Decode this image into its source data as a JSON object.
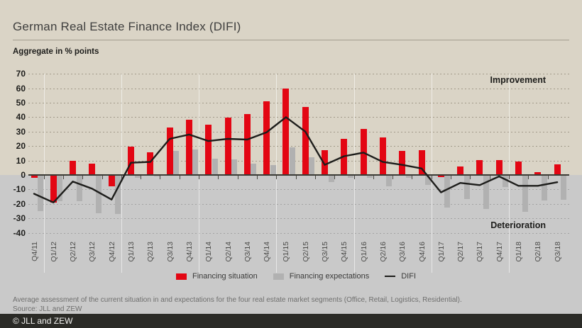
{
  "header": {
    "title": "German Real Estate Finance Index (DIFI)",
    "subtitle": "Aggregate in % points"
  },
  "chart_data": {
    "type": "bar",
    "title": "German Real Estate Finance Index (DIFI)",
    "ylabel": "Aggregate in % points",
    "ylim": [
      -40,
      70
    ],
    "ytick_step": 10,
    "grid": "dotted-horizontal",
    "legend_position": "bottom",
    "categories": [
      "Q4/11",
      "Q1/12",
      "Q2/12",
      "Q3/12",
      "Q4/12",
      "Q1/13",
      "Q2/13",
      "Q3/13",
      "Q4/13",
      "Q1/14",
      "Q2/14",
      "Q3/14",
      "Q4/14",
      "Q1/15",
      "Q2/15",
      "Q3/15",
      "Q4/15",
      "Q1/16",
      "Q2/16",
      "Q3/16",
      "Q4/16",
      "Q1/17",
      "Q2/17",
      "Q3/17",
      "Q4/17",
      "Q1/18",
      "Q2/18",
      "Q3/18"
    ],
    "series": [
      {
        "name": "Financing situation",
        "type": "bar",
        "color": "#e30613",
        "values": [
          -2,
          -19,
          10,
          8,
          -8,
          19.5,
          15.5,
          33,
          38.5,
          35,
          39.5,
          42,
          51,
          60,
          47,
          17,
          25,
          32,
          26,
          16.5,
          17,
          -1.5,
          6,
          10.5,
          10.5,
          9.5,
          2,
          7.5
        ]
      },
      {
        "name": "Financing expectations",
        "type": "bar",
        "color": "#b1b1b1",
        "values": [
          -25,
          -18,
          -18,
          -26.5,
          -27,
          -2,
          -1,
          16.5,
          17.5,
          11.5,
          11,
          8,
          7,
          19,
          12.5,
          -5,
          -2,
          -2,
          -8,
          -2,
          -7,
          -22.5,
          -16.5,
          -23.5,
          -8.5,
          -25.5,
          -17.5,
          -17
        ]
      },
      {
        "name": "DIFI",
        "type": "line",
        "color": "#1d1d1b",
        "values": [
          -13,
          -19,
          -4.5,
          -9.5,
          -17,
          8.5,
          9,
          25,
          28,
          23.5,
          25,
          24.5,
          29.5,
          40,
          30,
          7,
          13,
          15.5,
          9,
          7,
          4.5,
          -12,
          -5.5,
          -7,
          -1,
          -7.5,
          -7.5,
          -5
        ]
      }
    ],
    "annotations": [
      {
        "text": "Improvement",
        "position": "upper-right"
      },
      {
        "text": "Deterioration",
        "position": "lower-right"
      }
    ]
  },
  "annotations": {
    "improvement": "Improvement",
    "deterioration": "Deterioration"
  },
  "legend": {
    "items": [
      {
        "label": "Financing situation",
        "swatch": "square",
        "color": "#e30613"
      },
      {
        "label": "Financing expectations",
        "swatch": "square",
        "color": "#b1b1b1"
      },
      {
        "label": "DIFI",
        "swatch": "line",
        "color": "#1d1d1b"
      }
    ]
  },
  "footer": {
    "note": "Average assessment of the current situation in and expectations for the four real estate market segments (Office, Retail, Logistics, Residential).",
    "source": "Source: JLL and ZEW",
    "copyright": "© JLL and ZEW"
  },
  "colors": {
    "background": "#dad4c6",
    "deterioration_zone": "#c9c9c9",
    "bottom_bar": "#2b2b27",
    "accent_red": "#e30613",
    "bar_gray": "#b1b1b1",
    "line_black": "#1d1d1b"
  }
}
